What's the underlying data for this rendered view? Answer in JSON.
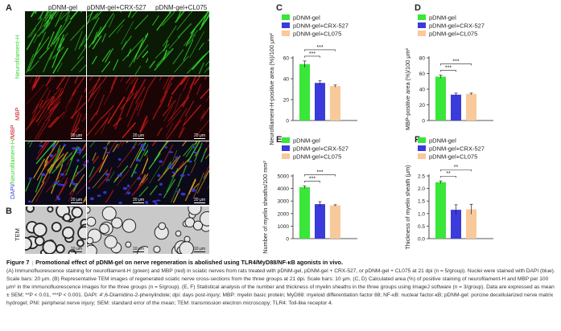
{
  "panels": {
    "A": "A",
    "B": "B",
    "C": "C",
    "D": "D",
    "E": "E",
    "F": "F"
  },
  "columns": [
    "pDNM-gel",
    "pDNM-gel+CRX-527",
    "pDNM-gel+CL075"
  ],
  "row_labels": {
    "neuro": "Neurofilament-H",
    "mbp": "MBP",
    "merge_dapi": "DAPI/",
    "merge_nf": "Neurofilament-H",
    "merge_mbp": "/MBP",
    "tem": "TEM"
  },
  "scale_if": "20 μm",
  "scale_tem": "10 μm",
  "colors": {
    "green_bar": "#39e639",
    "blue_bar": "#3b3bdb",
    "peach_bar": "#f8c99a",
    "nf_stain": "#35d62e",
    "mbp_stain": "#c01818",
    "dapi_stain": "#3a3ae0"
  },
  "chart_data": [
    {
      "panel": "C",
      "type": "bar",
      "categories": [
        "pDNM-gel",
        "pDNM-gel+CRX-527",
        "pDNM-gel+CL075"
      ],
      "values": [
        54,
        36,
        33
      ],
      "errors": [
        3,
        2,
        1
      ],
      "ylabel": "Neurofilament-H-positive area (%)/100 μm²",
      "ylim": [
        0,
        60
      ],
      "yticks": [
        "0",
        "20",
        "40",
        "60"
      ],
      "significance": [
        "***",
        "***"
      ],
      "legend": [
        "pDNM-gel",
        "pDNM-gel+CRX-527",
        "pDNM-gel+CL075"
      ],
      "legend_position": "top"
    },
    {
      "panel": "D",
      "type": "bar",
      "categories": [
        "pDNM-gel",
        "pDNM-gel+CRX-527",
        "pDNM-gel+CL075"
      ],
      "values": [
        56,
        33,
        34
      ],
      "errors": [
        2,
        2,
        1
      ],
      "ylabel": "MBP-positive area (%)/100 μm²",
      "ylim": [
        0,
        80
      ],
      "yticks": [
        "0",
        "20",
        "40",
        "60",
        "80"
      ],
      "significance": [
        "***",
        "***"
      ],
      "legend": [
        "pDNM-gel",
        "pDNM-gel+CRX-527",
        "pDNM-gel+CL075"
      ],
      "legend_position": "top"
    },
    {
      "panel": "E",
      "type": "bar",
      "categories": [
        "pDNM-gel",
        "pDNM-gel+CRX-527",
        "pDNM-gel+CL075"
      ],
      "values": [
        4100,
        2750,
        2650
      ],
      "errors": [
        100,
        200,
        50
      ],
      "ylabel": "Number of myelin sheaths/100 mm²",
      "ylim": [
        0,
        5000
      ],
      "yticks": [
        "0",
        "1000",
        "2000",
        "3000",
        "4000",
        "5000"
      ],
      "significance": [
        "***",
        "***"
      ],
      "legend": [
        "pDNM-gel",
        "pDNM-gel+CRX-527",
        "pDNM-gel+CL075"
      ],
      "legend_position": "top"
    },
    {
      "panel": "F",
      "type": "bar",
      "categories": [
        "pDNM-gel",
        "pDNM-gel+CRX-527",
        "pDNM-gel+CL075"
      ],
      "values": [
        2.25,
        1.15,
        1.17
      ],
      "errors": [
        0.05,
        0.2,
        0.2
      ],
      "ylabel": "Thickness of myelin sheath (μm)",
      "ylim": [
        0,
        2.5
      ],
      "yticks": [
        "0.0",
        "0.5",
        "1.0",
        "1.5",
        "2.0",
        "2.5"
      ],
      "significance": [
        "**",
        "**"
      ],
      "legend": [
        "pDNM-gel",
        "pDNM-gel+CRX-527",
        "pDNM-gel+CL075"
      ],
      "legend_position": "top"
    }
  ],
  "caption": {
    "figure_label": "Figure 7",
    "title": "Promotional effect of pDNM-gel on nerve regeneration is abolished using TLR4/MyD88/NF-κB agonists in vivo.",
    "body": "(A) Immunofluorescence staining for neurofilament-H (green) and MBP (red) in sciatic nerves from rats treated with pDNM-gel, pDNM-gel + CRX-527, or pDNM-gel + CL075 at 21 dpi (n = 5/group). Nuclei were stained with DAPI (blue). Scale bars: 20 μm. (B) Representative TEM images of regenerated sciatic nerve cross-sections from the three groups at 21 dpi. Scale bars: 10 μm. (C, D) Calculated area (%) of positive staining of neurofilament-H and MBP per 100 μm² in the immunofluorescence images for the three groups (n = 5/group). (E, F) Statistical analysis of the number and thickness of myelin sheaths in the three groups using ImageJ software (n = 3/group). Data are expressed as mean ± SEM; **P < 0.01, ***P < 0.001. DAPI: 4′,6-Diamidino-2-phenylindole; dpi: days post-injury; MBP: myelin basic protein; MyD88: myeloid differentiation factor 88; NF-κB: nuclear factor-κB; pDNM-gel: porcine decellularized nerve matrix hydrogel; PNI: peripheral nerve injury; SEM: standard error of the mean; TEM: transmission electron microscopy; TLR4: Toll-like receptor 4."
  }
}
